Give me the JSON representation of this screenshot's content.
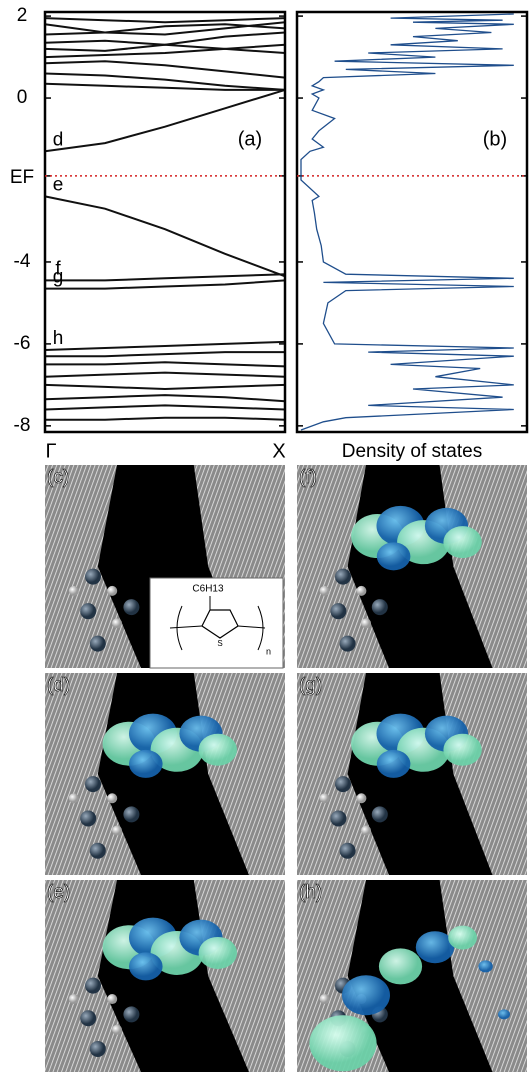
{
  "chart_data": [
    {
      "type": "line",
      "panel_label": "(a)",
      "x": [
        0,
        0.25,
        0.5,
        0.75,
        1
      ],
      "xlim": [
        0,
        1
      ],
      "xticks": [
        {
          "value": 0,
          "label": "Γ"
        },
        {
          "value": 1,
          "label": "X"
        }
      ],
      "ylim": [
        -8.15,
        2.1
      ],
      "yticks": [
        2,
        0,
        {
          "value": -1.9,
          "label": "EF"
        },
        -4,
        -6,
        -8
      ],
      "color": "#111111",
      "fermi_color": "#d42020",
      "series": [
        {
          "values": [
            1.95,
            1.9,
            1.85,
            1.9,
            1.95
          ]
        },
        {
          "values": [
            1.8,
            1.6,
            1.55,
            1.7,
            1.85
          ]
        },
        {
          "values": [
            1.55,
            1.6,
            1.75,
            1.8,
            1.7
          ]
        },
        {
          "values": [
            1.35,
            1.4,
            1.3,
            1.2,
            1.1
          ]
        },
        {
          "values": [
            1.2,
            1.15,
            1.3,
            1.5,
            1.6
          ]
        },
        {
          "values": [
            1.0,
            1.05,
            1.1,
            1.2,
            1.3
          ]
        },
        {
          "values": [
            0.85,
            0.9,
            0.8,
            0.65,
            0.5
          ]
        },
        {
          "values": [
            0.6,
            0.55,
            0.45,
            0.3,
            0.2
          ]
        },
        {
          "values": [
            0.35,
            0.3,
            0.25,
            0.2,
            0.2
          ]
        },
        {
          "name": "d",
          "values": [
            -1.3,
            -1.1,
            -0.7,
            -0.25,
            0.2
          ]
        },
        {
          "name": "e",
          "values": [
            -2.4,
            -2.7,
            -3.2,
            -3.8,
            -4.35
          ]
        },
        {
          "name": "f",
          "values": [
            -4.45,
            -4.45,
            -4.4,
            -4.35,
            -4.3
          ]
        },
        {
          "name": "g",
          "values": [
            -4.65,
            -4.65,
            -4.6,
            -4.55,
            -4.45
          ]
        },
        {
          "name": "h",
          "values": [
            -6.15,
            -6.1,
            -6.05,
            -6.0,
            -5.95
          ]
        },
        {
          "values": [
            -6.3,
            -6.3,
            -6.25,
            -6.2,
            -6.2
          ]
        },
        {
          "values": [
            -6.5,
            -6.5,
            -6.45,
            -6.5,
            -6.55
          ]
        },
        {
          "values": [
            -6.8,
            -6.75,
            -6.7,
            -6.75,
            -6.8
          ]
        },
        {
          "values": [
            -7.0,
            -7.05,
            -7.1,
            -7.05,
            -7.0
          ]
        },
        {
          "values": [
            -7.35,
            -7.3,
            -7.25,
            -7.3,
            -7.4
          ]
        },
        {
          "values": [
            -7.6,
            -7.55,
            -7.5,
            -7.55,
            -7.6
          ]
        },
        {
          "values": [
            -7.85,
            -7.85,
            -7.8,
            -7.8,
            -7.85
          ]
        }
      ]
    },
    {
      "type": "dos",
      "panel_label": "(b)",
      "x_label": "Density of states",
      "color": "#1f4e8c",
      "xlim": [
        0,
        1
      ],
      "ylim": [
        -8.15,
        2.1
      ],
      "y": [
        2.05,
        1.95,
        1.9,
        1.85,
        1.8,
        1.7,
        1.6,
        1.5,
        1.4,
        1.3,
        1.2,
        1.1,
        1.0,
        0.9,
        0.8,
        0.7,
        0.6,
        0.5,
        0.4,
        0.3,
        0.2,
        0.1,
        0,
        -0.3,
        -0.5,
        -0.8,
        -1.0,
        -1.2,
        -1.3,
        -1.5,
        -2.0,
        -2.4,
        -2.5,
        -2.8,
        -3.2,
        -3.6,
        -4.0,
        -4.3,
        -4.4,
        -4.5,
        -4.6,
        -4.7,
        -5.0,
        -5.5,
        -6.0,
        -6.1,
        -6.2,
        -6.3,
        -6.5,
        -6.6,
        -6.8,
        -7.0,
        -7.1,
        -7.3,
        -7.5,
        -7.6,
        -7.8,
        -7.9,
        -8.1
      ],
      "values": [
        0.95,
        0.4,
        0.9,
        0.5,
        0.95,
        0.6,
        0.85,
        0.5,
        0.7,
        0.4,
        0.9,
        0.3,
        0.6,
        0.15,
        0.95,
        0.2,
        0.6,
        0.1,
        0.08,
        0.05,
        0.1,
        0.05,
        0.08,
        0.05,
        0.15,
        0.08,
        0.05,
        0.1,
        0.04,
        0,
        0,
        0.08,
        0.05,
        0.06,
        0.07,
        0.09,
        0.1,
        0.2,
        0.95,
        0.1,
        0.95,
        0.2,
        0.12,
        0.1,
        0.15,
        0.95,
        0.3,
        0.95,
        0.4,
        0.8,
        0.6,
        0.95,
        0.5,
        0.9,
        0.3,
        0.95,
        0.2,
        0.1,
        0
      ]
    }
  ],
  "panels": [
    "(c)",
    "(f)",
    "(d)",
    "(g)",
    "(e)",
    "(h)"
  ],
  "inset": {
    "formula": "C6H13",
    "atom": "S",
    "index": "n"
  }
}
